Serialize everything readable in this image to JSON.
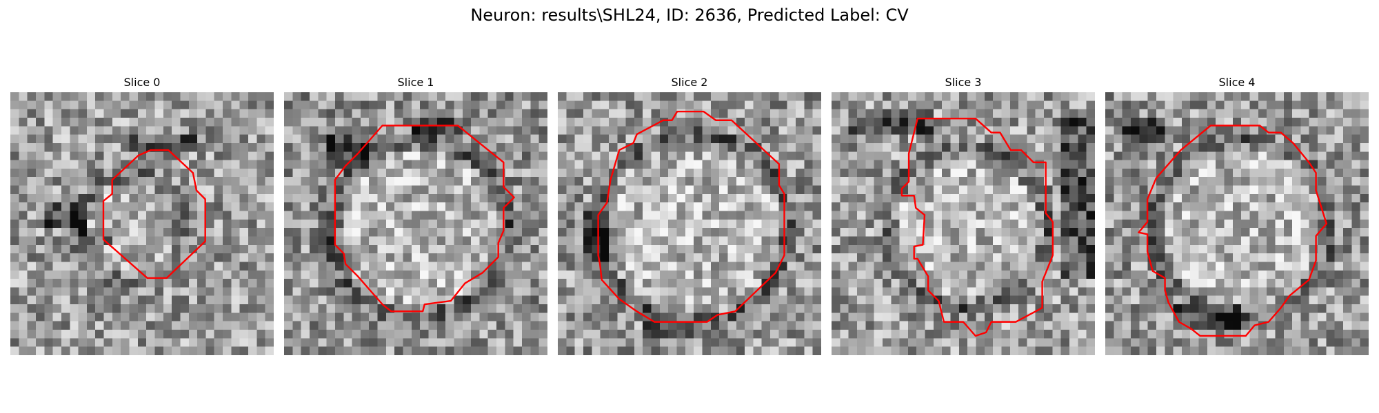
{
  "figure": {
    "title": "Neuron: results\\SHL24, ID: 2636, Predicted Label: CV",
    "contour_color": "#ff0000",
    "image_colormap": "gray"
  },
  "panels": [
    {
      "title": "Slice 0"
    },
    {
      "title": "Slice 1"
    },
    {
      "title": "Slice 2"
    },
    {
      "title": "Slice 3"
    },
    {
      "title": "Slice 4"
    }
  ]
}
